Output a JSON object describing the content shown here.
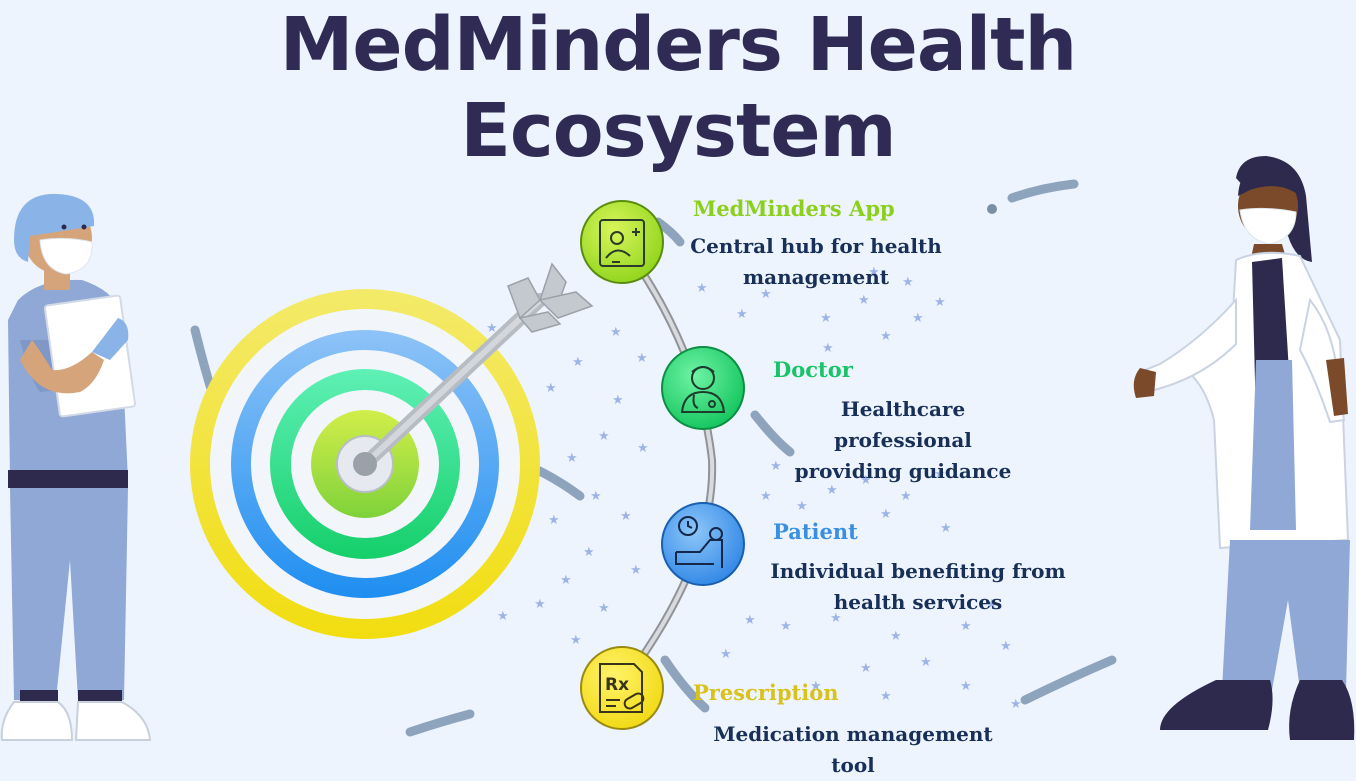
{
  "title": {
    "line1": "MedMinders Health",
    "line2": "Ecosystem"
  },
  "steps": [
    {
      "label": "MedMinders App",
      "color": "#8ccf1c",
      "icon": "mobile-app-icon",
      "desc1": "Central hub for health",
      "desc2": "management"
    },
    {
      "label": "Doctor",
      "color": "#19c36a",
      "icon": "doctor-icon",
      "desc1": "Healthcare professional",
      "desc2": "providing guidance"
    },
    {
      "label": "Patient",
      "color": "#3a8fe0",
      "icon": "patient-icon",
      "desc1": "Individual benefiting from",
      "desc2": "health services"
    },
    {
      "label": "Prescription",
      "color": "#d9c21a",
      "icon": "prescription-icon",
      "desc1": "Medication management tool",
      "desc2": ""
    }
  ],
  "colors": {
    "title": "#302b55",
    "description": "#183058",
    "background": "#eef4fd"
  }
}
